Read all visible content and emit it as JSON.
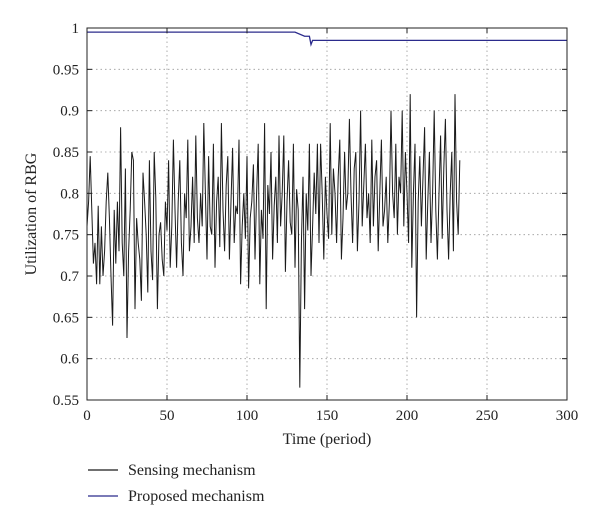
{
  "chart_data": {
    "type": "line",
    "xlabel": "Time (period)",
    "ylabel": "Utilization of RBG",
    "xlim": [
      0,
      300
    ],
    "ylim": [
      0.55,
      1.0
    ],
    "grid": true,
    "legend_position": "bottom-left, below plot",
    "x_ticks": [
      0,
      50,
      100,
      150,
      200,
      250,
      300
    ],
    "y_ticks": [
      0.55,
      0.6,
      0.65,
      0.7,
      0.75,
      0.8,
      0.85,
      0.9,
      0.95,
      1
    ],
    "x_tick_labels": [
      "0",
      "50",
      "100",
      "150",
      "200",
      "250",
      "300"
    ],
    "y_tick_labels": [
      "0.55",
      "0.6",
      "0.65",
      "0.7",
      "0.75",
      "0.8",
      "0.85",
      "0.9",
      "0.95",
      "1"
    ],
    "series": [
      {
        "name": "Sensing mechanism",
        "color": "#1a1a1a",
        "x_start": 0,
        "x_step": 1,
        "values": [
          0.76,
          0.79,
          0.845,
          0.78,
          0.715,
          0.74,
          0.69,
          0.785,
          0.69,
          0.76,
          0.7,
          0.73,
          0.79,
          0.825,
          0.77,
          0.7,
          0.64,
          0.78,
          0.715,
          0.79,
          0.73,
          0.88,
          0.74,
          0.7,
          0.83,
          0.625,
          0.73,
          0.78,
          0.85,
          0.84,
          0.66,
          0.77,
          0.74,
          0.72,
          0.67,
          0.825,
          0.79,
          0.75,
          0.68,
          0.84,
          0.73,
          0.695,
          0.85,
          0.795,
          0.66,
          0.75,
          0.765,
          0.72,
          0.7,
          0.79,
          0.755,
          0.84,
          0.71,
          0.76,
          0.865,
          0.78,
          0.71,
          0.79,
          0.84,
          0.74,
          0.7,
          0.8,
          0.77,
          0.865,
          0.73,
          0.76,
          0.82,
          0.74,
          0.87,
          0.77,
          0.74,
          0.8,
          0.76,
          0.885,
          0.8,
          0.72,
          0.845,
          0.76,
          0.75,
          0.86,
          0.71,
          0.79,
          0.82,
          0.735,
          0.885,
          0.78,
          0.73,
          0.81,
          0.845,
          0.72,
          0.79,
          0.855,
          0.74,
          0.785,
          0.775,
          0.865,
          0.69,
          0.76,
          0.8,
          0.745,
          0.845,
          0.685,
          0.77,
          0.79,
          0.835,
          0.72,
          0.8,
          0.86,
          0.69,
          0.78,
          0.745,
          0.885,
          0.66,
          0.81,
          0.775,
          0.85,
          0.72,
          0.785,
          0.82,
          0.74,
          0.87,
          0.76,
          0.8,
          0.87,
          0.705,
          0.79,
          0.84,
          0.765,
          0.75,
          0.86,
          0.71,
          0.805,
          0.78,
          0.565,
          0.74,
          0.82,
          0.66,
          0.8,
          0.755,
          0.86,
          0.7,
          0.76,
          0.825,
          0.775,
          0.86,
          0.74,
          0.86,
          0.8,
          0.72,
          0.82,
          0.775,
          0.745,
          0.885,
          0.75,
          0.83,
          0.8,
          0.74,
          0.82,
          0.865,
          0.72,
          0.77,
          0.85,
          0.78,
          0.8,
          0.89,
          0.8,
          0.74,
          0.83,
          0.85,
          0.73,
          0.79,
          0.9,
          0.76,
          0.81,
          0.86,
          0.77,
          0.8,
          0.74,
          0.865,
          0.76,
          0.82,
          0.84,
          0.73,
          0.8,
          0.865,
          0.76,
          0.78,
          0.82,
          0.74,
          0.79,
          0.9,
          0.8,
          0.77,
          0.86,
          0.75,
          0.82,
          0.8,
          0.9,
          0.76,
          0.85,
          0.8,
          0.74,
          0.92,
          0.71,
          0.8,
          0.86,
          0.65,
          0.79,
          0.845,
          0.76,
          0.82,
          0.88,
          0.72,
          0.79,
          0.85,
          0.74,
          0.8,
          0.9,
          0.78,
          0.72,
          0.8,
          0.87,
          0.745,
          0.83,
          0.89,
          0.78,
          0.72,
          0.8,
          0.85,
          0.73,
          0.92,
          0.79,
          0.75,
          0.84
        ]
      },
      {
        "name": "Proposed mechanism",
        "color": "#2b2b8c",
        "points": [
          [
            0,
            0.995
          ],
          [
            130,
            0.995
          ],
          [
            136,
            0.99
          ],
          [
            139,
            0.99
          ],
          [
            140,
            0.98
          ],
          [
            141,
            0.985
          ],
          [
            142,
            0.985
          ],
          [
            300,
            0.985
          ]
        ]
      }
    ]
  }
}
